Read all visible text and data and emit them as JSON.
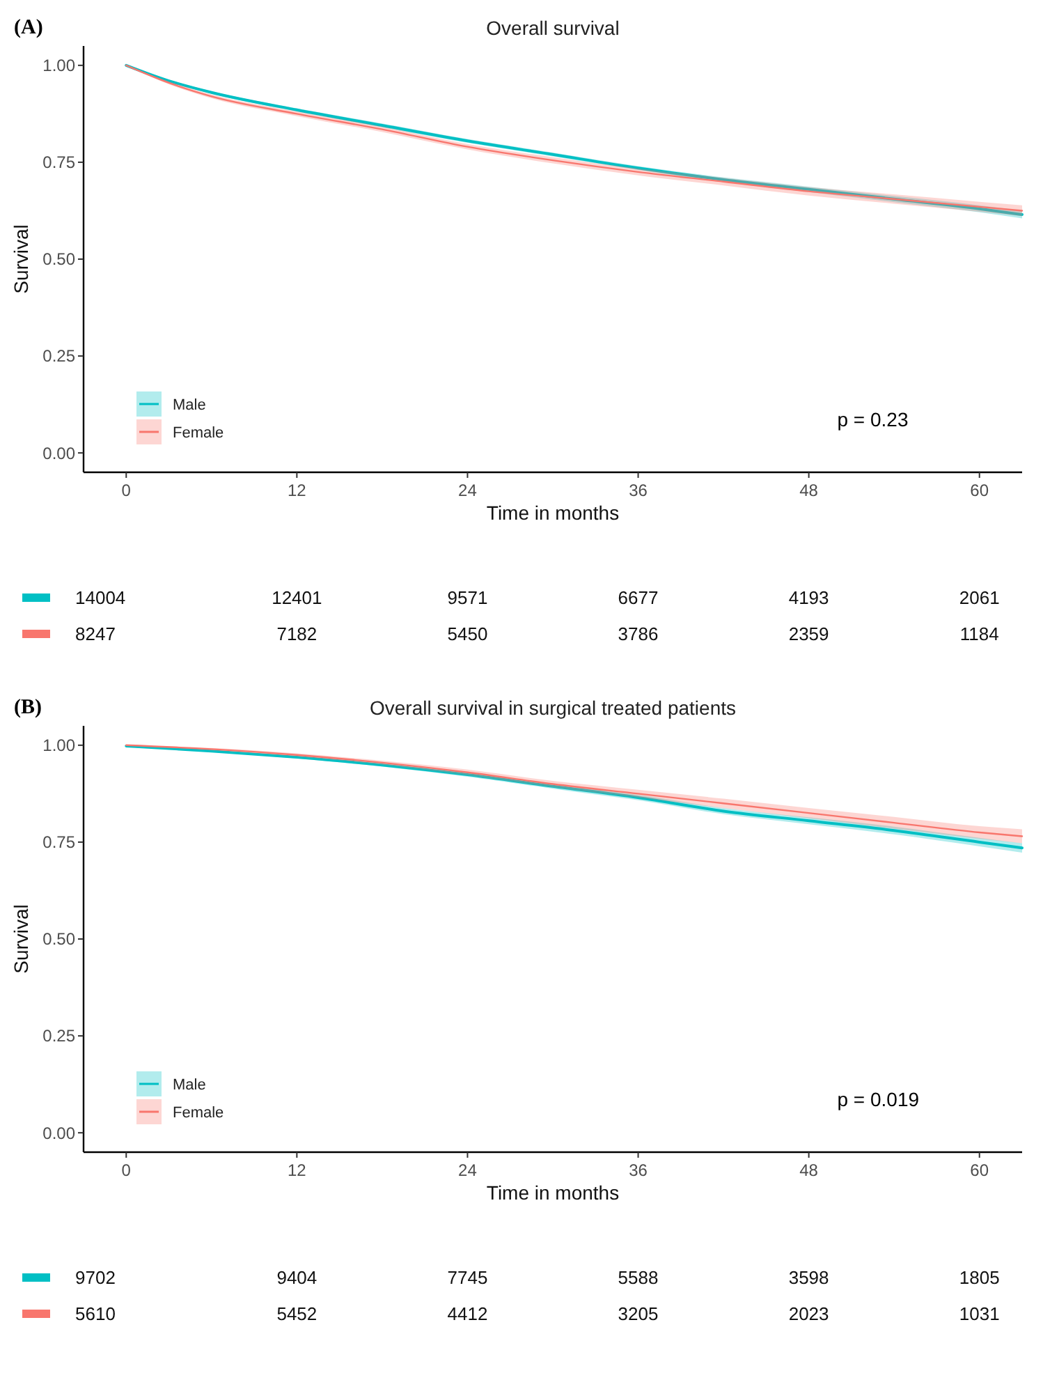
{
  "chart_data": [
    {
      "type": "line",
      "title": "Overall survival",
      "xlabel": "Time in months",
      "ylabel": "Survival",
      "x": [
        0,
        3,
        6,
        12,
        18,
        24,
        30,
        36,
        42,
        48,
        54,
        60,
        63
      ],
      "xlim": [
        -3,
        63
      ],
      "ylim": [
        -0.05,
        1.05
      ],
      "xticks": [
        0,
        12,
        24,
        36,
        48,
        60
      ],
      "yticks": [
        {
          "value": 0,
          "label": "0.00"
        },
        {
          "value": 0.25,
          "label": "0.25"
        },
        {
          "value": 0.5,
          "label": "0.50"
        },
        {
          "value": 0.75,
          "label": "0.75"
        },
        {
          "value": 1,
          "label": "1.00"
        }
      ],
      "legend": "bottom left",
      "grid": false,
      "series": [
        {
          "name": "Male",
          "color": "#00bfc4",
          "values": [
            1,
            0.96,
            0.93,
            0.885,
            0.845,
            0.805,
            0.77,
            0.735,
            0.705,
            0.68,
            0.655,
            0.63,
            0.615
          ],
          "lower": [
            1,
            0.957,
            0.927,
            0.881,
            0.84,
            0.8,
            0.765,
            0.73,
            0.699,
            0.673,
            0.647,
            0.621,
            0.605
          ],
          "upper": [
            1,
            0.963,
            0.933,
            0.889,
            0.85,
            0.81,
            0.775,
            0.74,
            0.711,
            0.687,
            0.663,
            0.639,
            0.625
          ]
        },
        {
          "name": "Female",
          "color": "#f8766d",
          "values": [
            1,
            0.955,
            0.92,
            0.875,
            0.835,
            0.79,
            0.755,
            0.725,
            0.7,
            0.675,
            0.655,
            0.635,
            0.625
          ],
          "lower": [
            1,
            0.951,
            0.915,
            0.869,
            0.828,
            0.783,
            0.747,
            0.716,
            0.69,
            0.664,
            0.643,
            0.622,
            0.611
          ],
          "upper": [
            1,
            0.959,
            0.925,
            0.881,
            0.842,
            0.797,
            0.763,
            0.734,
            0.71,
            0.686,
            0.667,
            0.648,
            0.639
          ]
        }
      ],
      "annotations": [
        "(A)",
        "p = 0.23",
        "14004",
        "12401",
        "9571",
        "6677",
        "4193",
        "2061",
        "8247",
        "7182",
        "5450",
        "3786",
        "2359",
        "1184"
      ]
    },
    {
      "type": "line",
      "title": "Overall survival in surgical treated patients",
      "xlabel": "Time in months",
      "ylabel": "Survival",
      "x": [
        0,
        6,
        12,
        18,
        24,
        30,
        36,
        42,
        48,
        54,
        60,
        63
      ],
      "xlim": [
        -3,
        63
      ],
      "ylim": [
        -0.05,
        1.05
      ],
      "xticks": [
        0,
        12,
        24,
        36,
        48,
        60
      ],
      "yticks": [
        {
          "value": 0,
          "label": "0.00"
        },
        {
          "value": 0.25,
          "label": "0.25"
        },
        {
          "value": 0.5,
          "label": "0.50"
        },
        {
          "value": 0.75,
          "label": "0.75"
        },
        {
          "value": 1,
          "label": "1.00"
        }
      ],
      "legend": "bottom left",
      "grid": false,
      "series": [
        {
          "name": "Male",
          "color": "#00bfc4",
          "values": [
            0.998,
            0.985,
            0.969,
            0.949,
            0.924,
            0.894,
            0.865,
            0.83,
            0.805,
            0.78,
            0.75,
            0.735
          ],
          "lower": [
            0.998,
            0.983,
            0.966,
            0.945,
            0.919,
            0.888,
            0.858,
            0.822,
            0.796,
            0.77,
            0.739,
            0.723
          ],
          "upper": [
            0.998,
            0.987,
            0.972,
            0.953,
            0.929,
            0.9,
            0.872,
            0.838,
            0.814,
            0.79,
            0.761,
            0.747
          ]
        },
        {
          "name": "Female",
          "color": "#f8766d",
          "values": [
            1,
            0.99,
            0.975,
            0.955,
            0.93,
            0.9,
            0.875,
            0.85,
            0.825,
            0.8,
            0.775,
            0.765
          ],
          "lower": [
            1,
            0.987,
            0.971,
            0.95,
            0.923,
            0.892,
            0.865,
            0.838,
            0.812,
            0.785,
            0.759,
            0.747
          ],
          "upper": [
            1,
            0.993,
            0.979,
            0.96,
            0.937,
            0.908,
            0.885,
            0.862,
            0.838,
            0.815,
            0.791,
            0.783
          ]
        }
      ],
      "annotations": [
        "(B)",
        "p = 0.019",
        "9702",
        "9404",
        "7745",
        "5588",
        "3598",
        "1805",
        "5610",
        "5452",
        "4412",
        "3205",
        "2023",
        "1031"
      ]
    }
  ]
}
